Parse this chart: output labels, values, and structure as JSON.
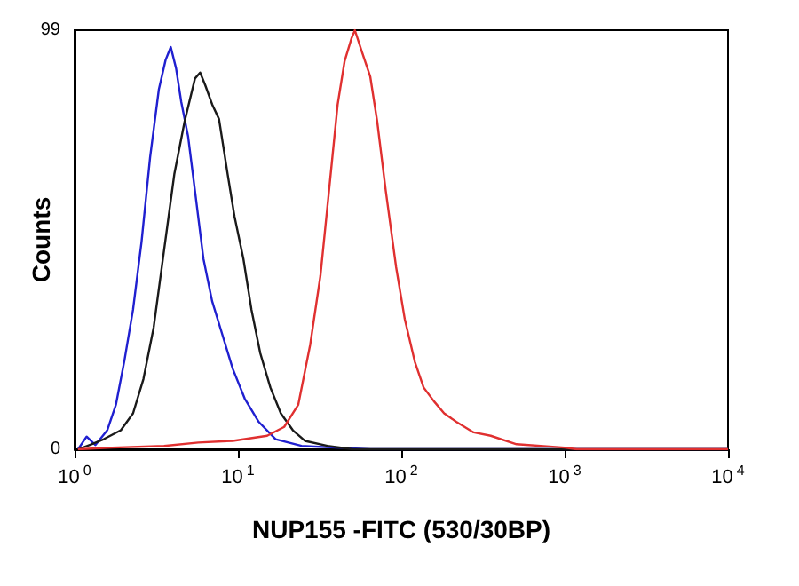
{
  "chart_data": {
    "type": "line",
    "xlabel": "NUP155 -FITC (530/30BP)",
    "ylabel": "Counts",
    "log": "x",
    "grid": false,
    "marker": "none",
    "line_style": "solid",
    "xlim": [
      1,
      10000
    ],
    "xticks": [
      {
        "value": 1,
        "label": "10$^{0}$"
      },
      {
        "value": 10,
        "label": "10$^{1}$"
      },
      {
        "value": 100,
        "label": "10$^{2}$"
      },
      {
        "value": 1000,
        "label": "10$^{3}$"
      },
      {
        "value": 10000,
        "label": "10$^{4}$"
      }
    ],
    "ylim": [
      0,
      99
    ],
    "yticks": [
      0,
      99
    ],
    "series": [
      {
        "color": "#2020d0",
        "x": [
          1.05,
          1.185,
          1.34,
          1.585,
          1.79,
          2.02,
          2.28,
          2.57,
          2.9,
          3.28,
          3.61,
          3.88,
          4.18,
          4.5,
          4.95,
          5.46,
          6.15,
          6.95,
          8.04,
          9.3,
          11,
          13.4,
          17,
          24.5,
          39.8,
          64.6,
          10000
        ],
        "values": [
          0,
          3,
          1,
          4.5,
          10.5,
          21,
          33,
          49,
          69,
          85,
          92,
          95,
          90,
          82,
          74,
          61,
          45,
          35,
          27,
          19,
          12,
          6.5,
          2.4,
          0.8,
          0.4,
          0,
          0
        ]
      },
      {
        "color": "#1a1a1a",
        "x": [
          1.05,
          1.27,
          1.51,
          1.92,
          2.28,
          2.64,
          3.05,
          3.53,
          4.08,
          4.72,
          5.46,
          5.87,
          6.31,
          6.95,
          7.66,
          8.65,
          9.53,
          10.8,
          12.1,
          13.7,
          15.8,
          18.3,
          21.7,
          25.7,
          35.3,
          50.7,
          10000
        ],
        "values": [
          0,
          1.2,
          2.4,
          4.5,
          8.5,
          16.6,
          28.8,
          47,
          65,
          77.5,
          87.6,
          89,
          86,
          81.5,
          78,
          65,
          55,
          45,
          33,
          22.7,
          14.6,
          8.5,
          4.5,
          2,
          0.8,
          0,
          0
        ]
      },
      {
        "color": "#e03030",
        "x": [
          1.05,
          1.7,
          3.53,
          5.72,
          9.3,
          15.1,
          19.2,
          23.4,
          27.7,
          32,
          36.1,
          40.8,
          45,
          49.5,
          52,
          57.3,
          64.6,
          71.2,
          80.4,
          93,
          105,
          121,
          137,
          158,
          183,
          217,
          277,
          353,
          508,
          1000,
          1185,
          10000
        ],
        "values": [
          0,
          0.4,
          0.8,
          1.6,
          2,
          3.2,
          5.3,
          10.5,
          24.7,
          41,
          61,
          81.5,
          91.7,
          97,
          99,
          94,
          88,
          77.5,
          61,
          43,
          30.8,
          20.7,
          14.6,
          11.4,
          8.5,
          6.5,
          4,
          3.2,
          1.2,
          0.4,
          0,
          0
        ]
      }
    ]
  }
}
